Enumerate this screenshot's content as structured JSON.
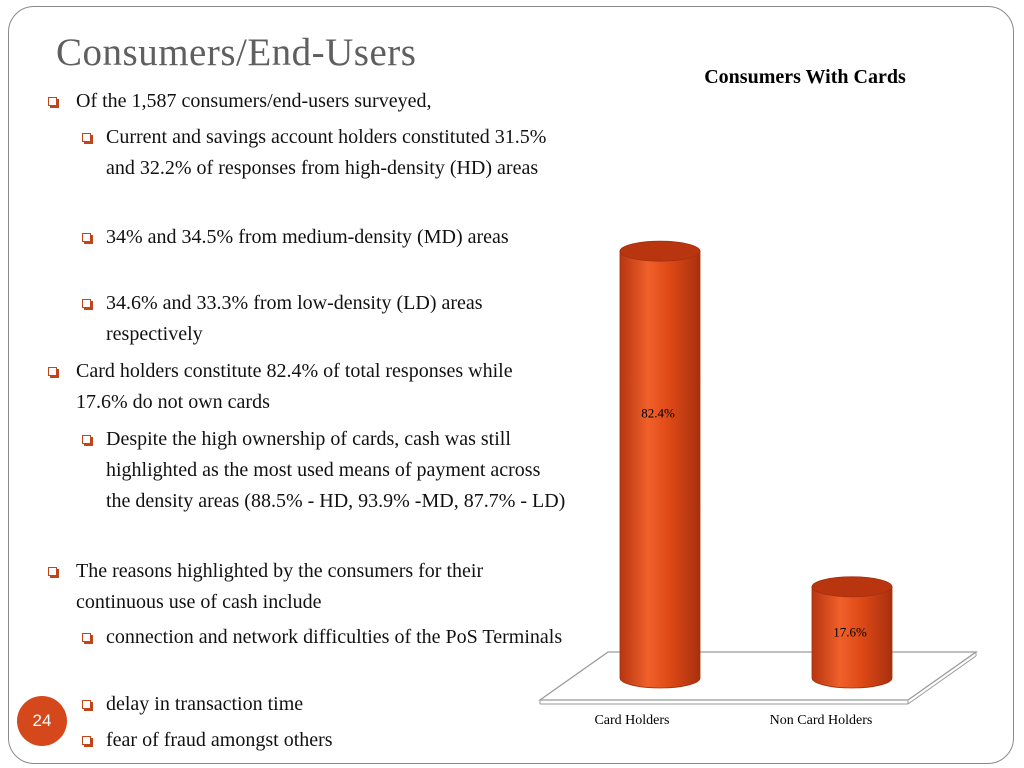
{
  "slide": {
    "title": "Consumers/End-Users",
    "page_number": "24"
  },
  "bullets": [
    {
      "level": 1,
      "text": "Of the 1,587 consumers/end-users surveyed,"
    },
    {
      "level": 2,
      "text": "Current and savings account holders constituted 31.5%  and 32.2% of responses from high-density (HD) areas"
    },
    {
      "level": 2,
      "text": "34% and 34.5% from medium-density (MD) areas"
    },
    {
      "level": 2,
      "text": "34.6% and 33.3% from low-density (LD) areas respectively"
    },
    {
      "level": 1,
      "text": "Card holders constitute 82.4% of total responses while 17.6% do not own cards"
    },
    {
      "level": 2,
      "text": "Despite the high ownership of cards, cash was still highlighted as the most used means of payment across the density areas (88.5% - HD, 93.9% -MD, 87.7% - LD)"
    },
    {
      "level": 1,
      "text": "The reasons highlighted by the consumers for their continuous use of cash include"
    },
    {
      "level": 2,
      "text": "connection and network difficulties of the PoS Terminals"
    },
    {
      "level": 2,
      "text": "delay in transaction time"
    },
    {
      "level": 2,
      "text": "fear of fraud amongst others"
    }
  ],
  "chart_data": {
    "type": "bar",
    "title": "Consumers With Cards",
    "categories": [
      "Card Holders",
      "Non Card Holders"
    ],
    "values": [
      82.4,
      17.6
    ],
    "data_labels": [
      "82.4%",
      "17.6%"
    ],
    "ylim": [
      0,
      100
    ],
    "grid": false,
    "legend": "none",
    "style": "3d-cylinder",
    "colors": {
      "bar": "#e04a17",
      "bar_dark": "#b83510",
      "bar_light": "#f26a35",
      "accent": "#d4481c",
      "floor": "#9a9a9a"
    }
  }
}
